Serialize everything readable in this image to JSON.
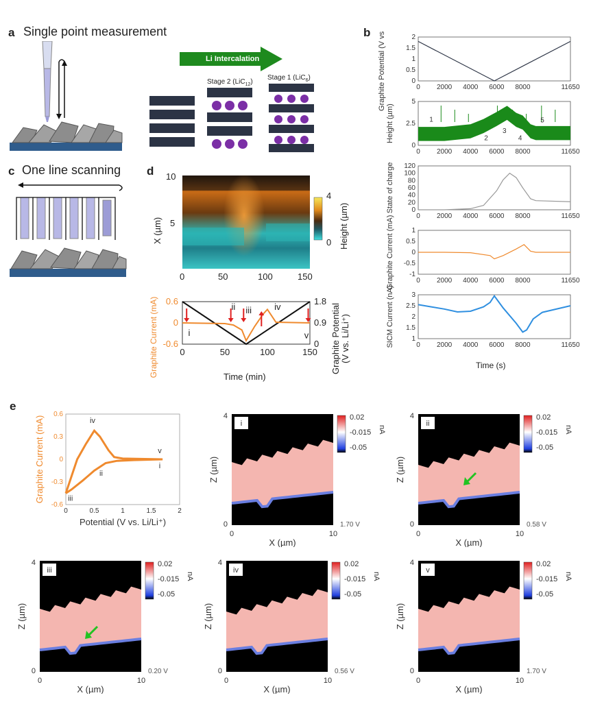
{
  "panels": {
    "a": {
      "letter": "a",
      "title": "Single point measurement",
      "arrow_label": "Li Intercalation",
      "stage2": "Stage 2 (LiC",
      "stage2_sub": "12",
      "stage1": "Stage 1 (LiC",
      "stage1_sub": "6"
    },
    "b": {
      "letter": "b",
      "xlabel": "Time (s)"
    },
    "c": {
      "letter": "c",
      "title": "One line scanning"
    },
    "d": {
      "letter": "d",
      "ylabel_map": "X (µm)",
      "cbar_label": "Height (µm)",
      "cbar_ticks": [
        "4",
        "0"
      ],
      "map_yticks": [
        "10",
        "5"
      ],
      "map_xticks": [
        "0",
        "50",
        "100",
        "150"
      ],
      "left_ylabel": "Graphite Current (mA)",
      "right_ylabel_1": "Graphite Potential",
      "right_ylabel_2": "(V vs. Li/Li⁺)",
      "left_yticks": [
        "0.6",
        "0",
        "-0.6"
      ],
      "right_yticks": [
        "1.8",
        "0.9",
        "0"
      ],
      "xticks": [
        "0",
        "50",
        "100",
        "150"
      ],
      "xlabel": "Time (min)",
      "stages": [
        "i",
        "ii",
        "iii",
        "iv",
        "v"
      ]
    },
    "e": {
      "letter": "e",
      "cv_ylabel": "Graphite Current (mA)",
      "cv_xlabel": "Potential (V vs. Li/Li⁺)",
      "cv_yticks": [
        "0.6",
        "0.3",
        "0",
        "-0.3",
        "-0.6"
      ],
      "cv_xticks": [
        "0",
        "0.5",
        "1",
        "1.5",
        "2"
      ],
      "cv_stages": [
        "iv",
        "v",
        "ii",
        "i",
        "iii"
      ],
      "maps": [
        {
          "label": "i",
          "voltage": "1.70 V"
        },
        {
          "label": "ii",
          "voltage": "0.58 V"
        },
        {
          "label": "iii",
          "voltage": "0.20 V"
        },
        {
          "label": "iv",
          "voltage": "0.56 V"
        },
        {
          "label": "v",
          "voltage": "1.70 V"
        }
      ],
      "map_zlabel": "Z (µm)",
      "map_xlabel": "X (µm)",
      "map_yticks": [
        "4",
        "0"
      ],
      "map_xticks": [
        "0",
        "10"
      ],
      "cbar_ticks": [
        "0.02",
        "-0.015",
        "-0.05"
      ],
      "cbar_unit": "nA"
    }
  },
  "chart_data": [
    {
      "type": "line",
      "title": "",
      "ylabel": "Graphite Potential (V vs. Li/Li⁺)",
      "xlabel": "",
      "x": [
        0,
        5825,
        11650
      ],
      "values": [
        1.8,
        0.0,
        1.8
      ],
      "ylim": [
        0,
        2
      ],
      "xlim": [
        0,
        11650
      ],
      "yticks": [
        "2",
        "1.5",
        "1",
        "0.5",
        "0"
      ],
      "xticks": [
        "0",
        "2000",
        "4000",
        "6000",
        "8000",
        "11650"
      ]
    },
    {
      "type": "area",
      "title": "",
      "ylabel": "Height (µm)",
      "xlabel": "",
      "x": [
        0,
        2000,
        4000,
        5000,
        6000,
        6800,
        7500,
        8000,
        8600,
        9000,
        11650
      ],
      "values": [
        1.3,
        1.3,
        1.6,
        2.2,
        3.0,
        3.7,
        2.9,
        2.6,
        1.6,
        1.4,
        1.4
      ],
      "ylim": [
        0,
        5
      ],
      "xlim": [
        0,
        11650
      ],
      "annotations": [
        "1",
        "2",
        "3",
        "4",
        "5"
      ],
      "yticks": [
        "5",
        "2.5",
        "0"
      ],
      "xticks": [
        "0",
        "2000",
        "4000",
        "6000",
        "8000",
        "11650"
      ]
    },
    {
      "type": "line",
      "title": "",
      "ylabel": "State of charge",
      "xlabel": "",
      "x": [
        0,
        2000,
        4000,
        5000,
        6000,
        6500,
        7000,
        7500,
        8000,
        8600,
        9000,
        11650
      ],
      "values": [
        0,
        0,
        3,
        12,
        52,
        82,
        100,
        88,
        60,
        30,
        25,
        22
      ],
      "ylim": [
        0,
        120
      ],
      "xlim": [
        0,
        11650
      ],
      "yticks": [
        "120",
        "100",
        "80",
        "60",
        "40",
        "20",
        "0"
      ],
      "xticks": [
        "0",
        "2000",
        "4000",
        "6000",
        "8000",
        "11650"
      ]
    },
    {
      "type": "line",
      "title": "",
      "ylabel": "Graphite Current (mA)",
      "xlabel": "",
      "x": [
        0,
        2000,
        4000,
        5500,
        5825,
        6500,
        7500,
        8100,
        8600,
        9000,
        11650
      ],
      "values": [
        0,
        0,
        -0.02,
        -0.15,
        -0.3,
        -0.15,
        0.15,
        0.35,
        0.05,
        0.0,
        0.0
      ],
      "ylim": [
        -1,
        1
      ],
      "xlim": [
        0,
        11650
      ],
      "yticks": [
        "1",
        "0.5",
        "0",
        "-0.5",
        "-1"
      ],
      "xticks": [
        "0",
        "2000",
        "4000",
        "6000",
        "8000",
        "11650"
      ]
    },
    {
      "type": "line",
      "title": "",
      "ylabel": "SICM Current (nA)",
      "xlabel": "Time (s)",
      "x": [
        0,
        1000,
        2000,
        3000,
        4000,
        5000,
        5500,
        5825,
        6500,
        7500,
        8000,
        8300,
        8800,
        9500,
        11650
      ],
      "values": [
        2.55,
        2.45,
        2.35,
        2.22,
        2.25,
        2.45,
        2.65,
        2.95,
        2.4,
        1.7,
        1.3,
        1.4,
        1.9,
        2.2,
        2.5
      ],
      "ylim": [
        1,
        3
      ],
      "xlim": [
        0,
        11650
      ],
      "yticks": [
        "3",
        "2.5",
        "2",
        "1.5",
        "1"
      ],
      "xticks": [
        "0",
        "2000",
        "4000",
        "6000",
        "8000",
        "11650"
      ]
    },
    {
      "type": "line",
      "title": "",
      "ylabel": "Graphite Current (mA)",
      "xlabel": "Time (min)",
      "series": [
        {
          "x": [
            0,
            50,
            60,
            70,
            75,
            85,
            95,
            100,
            110,
            150
          ],
          "values": [
            0,
            -0.02,
            -0.06,
            -0.2,
            -0.5,
            -0.1,
            0.25,
            0.38,
            0.02,
            0.0
          ]
        },
        {
          "x": [
            0,
            75,
            150
          ],
          "values": [
            1.8,
            0,
            1.8
          ],
          "axis": "right"
        }
      ],
      "ylim": [
        -0.6,
        0.6
      ],
      "y2lim": [
        0,
        1.8
      ],
      "xlim": [
        0,
        150
      ]
    },
    {
      "type": "line",
      "title": "",
      "ylabel": "Graphite Current (mA)",
      "xlabel": "Potential (V vs. Li/Li⁺)",
      "series": [
        {
          "x": [
            1.7,
            1.2,
            0.9,
            0.7,
            0.5,
            0.3,
            0.1,
            0.0
          ],
          "values": [
            0.0,
            -0.01,
            -0.02,
            -0.05,
            -0.15,
            -0.28,
            -0.4,
            -0.45
          ]
        },
        {
          "x": [
            0.0,
            0.2,
            0.35,
            0.5,
            0.6,
            0.75,
            0.85,
            1.0,
            1.7
          ],
          "values": [
            -0.45,
            0.0,
            0.2,
            0.38,
            0.3,
            0.12,
            0.03,
            0.01,
            0.0
          ]
        }
      ],
      "ylim": [
        -0.6,
        0.6
      ],
      "xlim": [
        0,
        2
      ]
    }
  ],
  "colors": {
    "orange": "#ef8a2e",
    "green": "#1a8a1a",
    "blue": "#2f8fe0",
    "grey": "#999999",
    "graphite": "#2c3445",
    "li": "#7b2fa6"
  }
}
